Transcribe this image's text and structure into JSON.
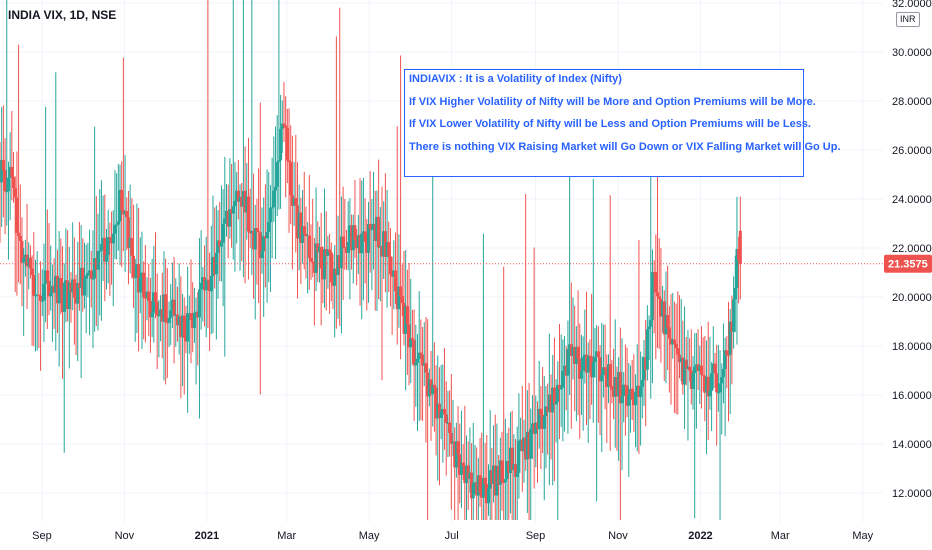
{
  "header": {
    "symbol": "INDIA VIX, 1D, NSE",
    "currency": "INR"
  },
  "annotation": {
    "lines": [
      "INDIAVIX : It is a Volatility of Index (Nifty)",
      "If VIX Higher Volatility of Nifty will be More and Option Premiums will be More.",
      "If VIX Lower Volatility of Nifty will be Less and Option Premiums will be Less.",
      "There is nothing VIX Raising Market will Go Down or VIX Falling Market will Go Up."
    ]
  },
  "colors": {
    "up": "#26a69a",
    "down": "#ef5350",
    "grid": "#f0f3fa",
    "axis_text": "#131722",
    "annotation": "#2962ff",
    "last_price": "#ef5350"
  },
  "chart_data": {
    "type": "candlestick",
    "title": "INDIA VIX, 1D, NSE",
    "y_axis": {
      "ticks": [
        "12.0000",
        "14.0000",
        "16.0000",
        "18.0000",
        "20.0000",
        "22.0000",
        "24.0000",
        "26.0000",
        "28.0000",
        "30.0000",
        "32.0000"
      ],
      "range": [
        10.8,
        32.2
      ],
      "position": "right",
      "unit": "INR"
    },
    "x_axis": {
      "ticks": [
        "Sep",
        "Nov",
        "2021",
        "Mar",
        "May",
        "Jul",
        "Sep",
        "Nov",
        "2022",
        "Mar",
        "May"
      ],
      "bold_ticks": [
        "2021",
        "2022"
      ],
      "range": [
        "2020-08-01",
        "2022-05-16"
      ]
    },
    "last_price": 21.3575,
    "last_price_label": "21.3575",
    "grid": true,
    "series_path": [
      [
        "2020-08-01",
        25.4
      ],
      [
        "2020-08-10",
        24.5
      ],
      [
        "2020-08-20",
        21.0
      ],
      [
        "2020-08-31",
        20.5
      ],
      [
        "2020-09-10",
        20.2
      ],
      [
        "2020-09-22",
        20.0
      ],
      [
        "2020-10-05",
        20.8
      ],
      [
        "2020-10-20",
        22.0
      ],
      [
        "2020-10-30",
        24.0
      ],
      [
        "2020-11-06",
        21.5
      ],
      [
        "2020-11-20",
        19.8
      ],
      [
        "2020-12-04",
        19.5
      ],
      [
        "2020-12-15",
        18.6
      ],
      [
        "2020-12-25",
        19.8
      ],
      [
        "2021-01-05",
        21.0
      ],
      [
        "2021-01-15",
        23.0
      ],
      [
        "2021-01-25",
        24.5
      ],
      [
        "2021-02-05",
        22.5
      ],
      [
        "2021-02-15",
        22.0
      ],
      [
        "2021-02-26",
        27.5
      ],
      [
        "2021-03-06",
        23.5
      ],
      [
        "2021-03-15",
        22.0
      ],
      [
        "2021-03-25",
        21.5
      ],
      [
        "2021-04-06",
        21.0
      ],
      [
        "2021-04-15",
        22.5
      ],
      [
        "2021-04-25",
        22.0
      ],
      [
        "2021-05-05",
        23.0
      ],
      [
        "2021-05-15",
        21.5
      ],
      [
        "2021-05-25",
        19.5
      ],
      [
        "2021-06-05",
        17.5
      ],
      [
        "2021-06-15",
        16.0
      ],
      [
        "2021-06-25",
        14.8
      ],
      [
        "2021-07-05",
        13.5
      ],
      [
        "2021-07-15",
        12.5
      ],
      [
        "2021-07-25",
        12.0
      ],
      [
        "2021-08-05",
        12.7
      ],
      [
        "2021-08-15",
        13.2
      ],
      [
        "2021-08-25",
        13.8
      ],
      [
        "2021-09-05",
        15.0
      ],
      [
        "2021-09-15",
        16.3
      ],
      [
        "2021-09-25",
        17.4
      ],
      [
        "2021-10-05",
        17.2
      ],
      [
        "2021-10-15",
        17.5
      ],
      [
        "2021-10-25",
        16.8
      ],
      [
        "2021-11-05",
        16.0
      ],
      [
        "2021-11-15",
        15.8
      ],
      [
        "2021-11-22",
        17.5
      ],
      [
        "2021-11-27",
        21.0
      ],
      [
        "2021-12-06",
        18.8
      ],
      [
        "2021-12-15",
        17.0
      ],
      [
        "2021-12-25",
        16.6
      ],
      [
        "2022-01-05",
        16.5
      ],
      [
        "2022-01-15",
        16.8
      ],
      [
        "2022-01-22",
        17.8
      ],
      [
        "2022-01-26",
        19.8
      ],
      [
        "2022-01-28",
        22.5
      ],
      [
        "2022-01-31",
        21.3575
      ]
    ]
  }
}
